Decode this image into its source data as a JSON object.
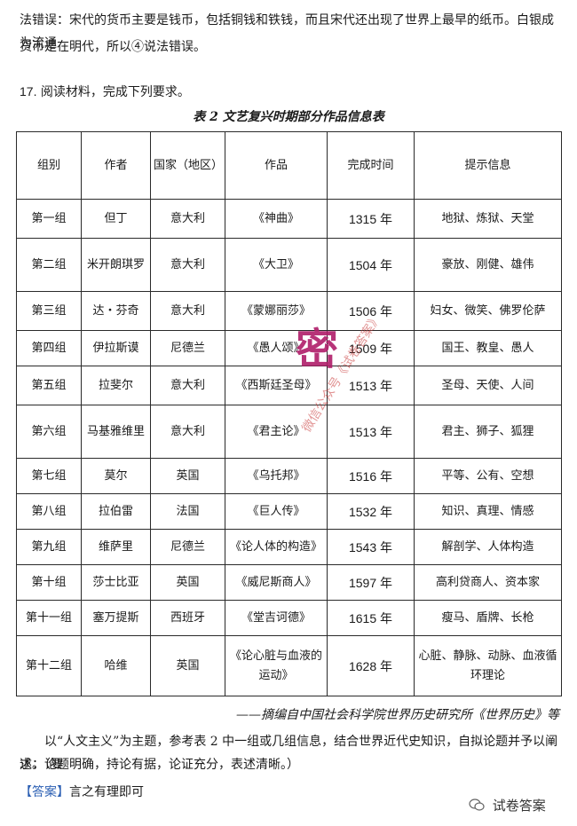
{
  "intro": {
    "line1": "法错误：宋代的货币主要是钱币，包括铜钱和铁钱，而且宋代还出现了世界上最早的纸币。白银成为流通",
    "line2": "货币是在明代，所以④说法错误。"
  },
  "question": {
    "number": "17.",
    "text": "阅读材料，完成下列要求。"
  },
  "table": {
    "caption": "表 2  文艺复兴时期部分作品信息表",
    "headers": [
      "组别",
      "作者",
      "国家（地区）",
      "作品",
      "完成时间",
      "提示信息"
    ],
    "rows": [
      {
        "group": "第一组",
        "author": "但丁",
        "country": "意大利",
        "work": "《神曲》",
        "year": "1315 年",
        "hint": "地狱、炼狱、天堂"
      },
      {
        "group": "第二组",
        "author": "米开朗琪罗",
        "country": "意大利",
        "work": "《大卫》",
        "year": "1504 年",
        "hint": "豪放、刚健、雄伟"
      },
      {
        "group": "第三组",
        "author": "达・芬奇",
        "country": "意大利",
        "work": "《蒙娜丽莎》",
        "year": "1506 年",
        "hint": "妇女、微笑、佛罗伦萨"
      },
      {
        "group": "第四组",
        "author": "伊拉斯谟",
        "country": "尼德兰",
        "work": "《愚人颂》",
        "year": "1509 年",
        "hint": "国王、教皇、愚人"
      },
      {
        "group": "第五组",
        "author": "拉斐尔",
        "country": "意大利",
        "work": "《西斯廷圣母》",
        "year": "1513 年",
        "hint": "圣母、天使、人间"
      },
      {
        "group": "第六组",
        "author": "马基雅维里",
        "country": "意大利",
        "work": "《君主论》",
        "year": "1513 年",
        "hint": "君主、狮子、狐狸"
      },
      {
        "group": "第七组",
        "author": "莫尔",
        "country": "英国",
        "work": "《乌托邦》",
        "year": "1516 年",
        "hint": "平等、公有、空想"
      },
      {
        "group": "第八组",
        "author": "拉伯雷",
        "country": "法国",
        "work": "《巨人传》",
        "year": "1532 年",
        "hint": "知识、真理、情感"
      },
      {
        "group": "第九组",
        "author": "维萨里",
        "country": "尼德兰",
        "work": "《论人体的构造》",
        "year": "1543 年",
        "hint": "解剖学、人体构造"
      },
      {
        "group": "第十组",
        "author": "莎士比亚",
        "country": "英国",
        "work": "《威尼斯商人》",
        "year": "1597 年",
        "hint": "高利贷商人、资本家"
      },
      {
        "group": "第十一组",
        "author": "塞万提斯",
        "country": "西班牙",
        "work": "《堂吉诃德》",
        "year": "1615 年",
        "hint": "瘦马、盾牌、长枪"
      },
      {
        "group": "第十二组",
        "author": "哈维",
        "country": "英国",
        "work": "《论心脏与血液的运动》",
        "year": "1628 年",
        "hint": "心脏、静脉、动脉、血液循环理论"
      }
    ]
  },
  "source": "——摘编自中国社会科学院世界历史研究所《世界历史》等",
  "task": {
    "line1": "以“人文主义”为主题，参考表 2 中一组或几组信息，结合世界近代史知识，自拟论题并予以阐述。（要",
    "line2": "求：论题明确，持论有据，论证充分，表述清晰。）"
  },
  "answer": {
    "label": "【答案】",
    "text": "言之有理即可"
  },
  "stamp": "密",
  "watermark": "微信公众号《试卷答案》",
  "badge": {
    "icon": "wechat-icon",
    "text": "试卷答案"
  }
}
